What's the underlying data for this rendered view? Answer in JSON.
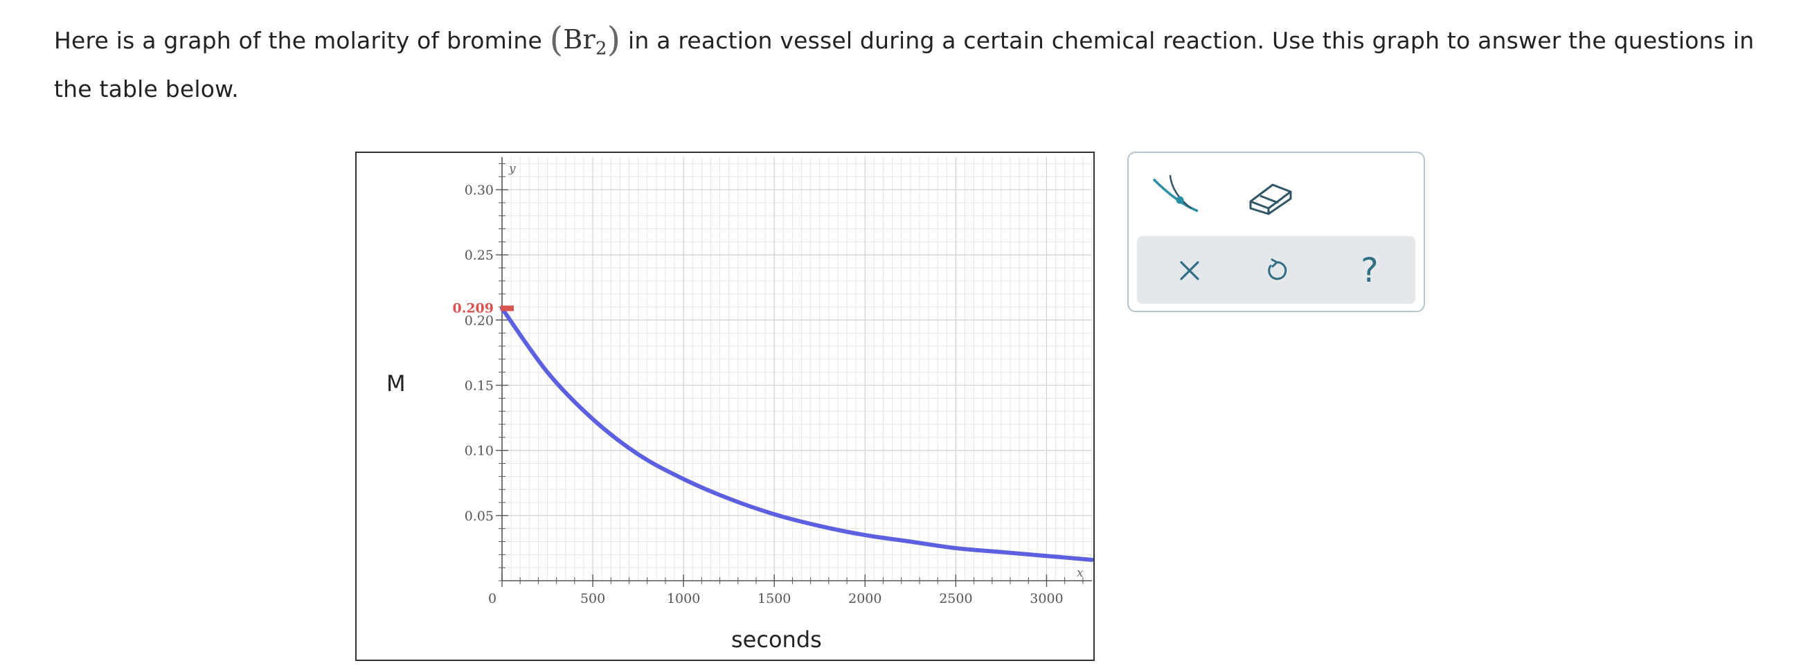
{
  "intro": {
    "before": "Here is a graph of the molarity of bromine ",
    "formula_main": "Br",
    "formula_sub": "2",
    "after": " in a reaction vessel during a certain chemical reaction. Use this graph to answer the questions in the table below."
  },
  "graph": {
    "y_axis_title": "M",
    "x_axis_title": "seconds",
    "y_var": "y",
    "x_var": "x",
    "marked_value_label": "0.209"
  },
  "chart_data": {
    "type": "line",
    "title": "",
    "xlabel": "seconds",
    "ylabel": "M",
    "xlim": [
      0,
      3250
    ],
    "ylim": [
      0,
      0.325
    ],
    "x_ticks": [
      0,
      500,
      1000,
      1500,
      2000,
      2500,
      3000
    ],
    "x_tick_labels": [
      "0",
      "500",
      "1000",
      "1500",
      "2000",
      "2500",
      "3000"
    ],
    "y_ticks": [
      0.05,
      0.1,
      0.15,
      0.2,
      0.25,
      0.3
    ],
    "y_tick_labels": [
      "0.05",
      "0.10",
      "0.15",
      "0.20",
      "0.25",
      "0.30"
    ],
    "grid": true,
    "series": [
      {
        "color": "#5b5fe0",
        "x": [
          0,
          250,
          500,
          750,
          1000,
          1250,
          1500,
          1750,
          2000,
          2250,
          2500,
          2750,
          3000,
          3250
        ],
        "y": [
          0.209,
          0.16,
          0.124,
          0.097,
          0.078,
          0.063,
          0.051,
          0.042,
          0.035,
          0.03,
          0.025,
          0.022,
          0.019,
          0.016
        ]
      }
    ],
    "marker": {
      "value": 0.209,
      "label": "0.209",
      "color": "#d9534f"
    }
  },
  "tools": {
    "curve_tool": "curve-draw-icon",
    "eraser_tool": "eraser-icon",
    "clear_action": "close-icon",
    "undo_action": "undo-icon",
    "help_label": "?"
  },
  "colors": {
    "curve": "#5b5fe0",
    "marker": "#d9534f",
    "tool_teal": "#2a8fa3",
    "tool_dark": "#2f5666",
    "grid": "#e2e2e2"
  }
}
